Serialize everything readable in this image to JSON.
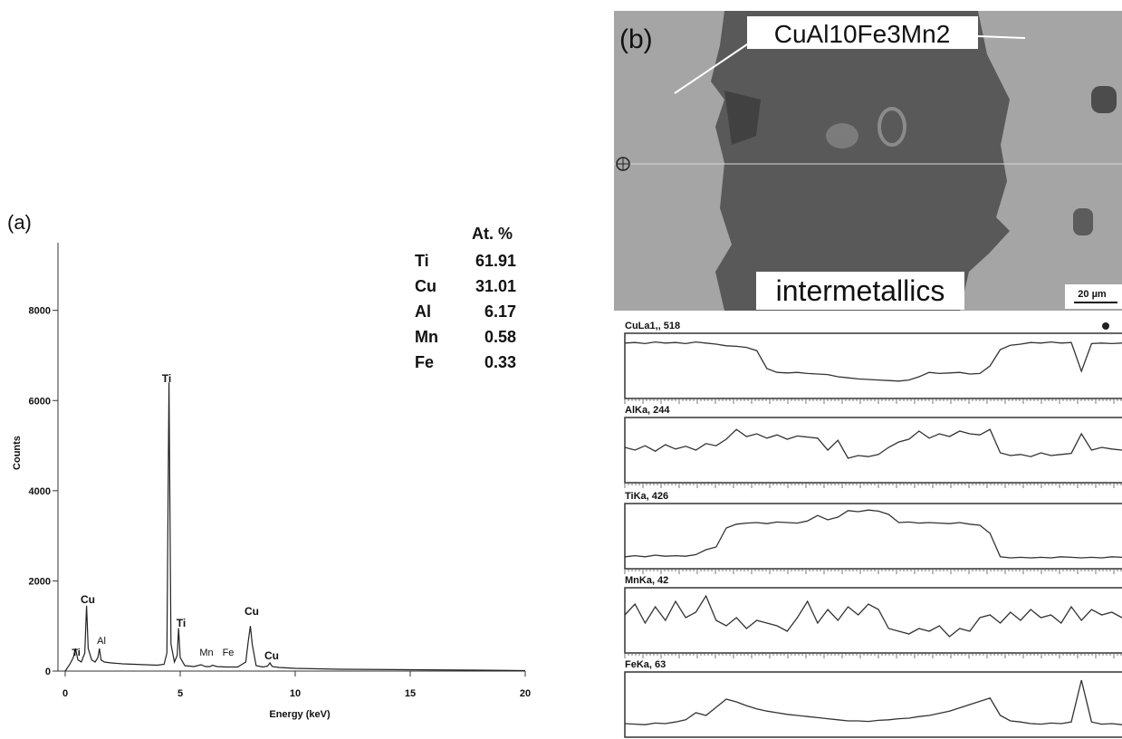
{
  "chart_data": [
    {
      "type": "line",
      "panel_label": "(a)",
      "xlabel": "Energy (keV)",
      "ylabel": "Counts",
      "x": [
        0,
        0.2,
        0.35,
        0.45,
        0.55,
        0.7,
        0.85,
        0.93,
        1.0,
        1.15,
        1.3,
        1.42,
        1.49,
        1.56,
        1.7,
        2,
        2.5,
        3,
        3.5,
        4,
        4.3,
        4.42,
        4.51,
        4.6,
        4.75,
        4.87,
        4.93,
        5.0,
        5.2,
        5.6,
        5.9,
        6.1,
        6.3,
        6.4,
        6.6,
        7,
        7.5,
        7.85,
        7.97,
        8.05,
        8.13,
        8.3,
        8.6,
        8.8,
        8.9,
        9.0,
        9.3,
        10,
        12,
        15,
        18,
        20
      ],
      "values": [
        0,
        150,
        300,
        500,
        250,
        200,
        400,
        1450,
        500,
        250,
        200,
        300,
        500,
        250,
        200,
        180,
        160,
        150,
        140,
        130,
        150,
        400,
        6400,
        600,
        200,
        350,
        950,
        300,
        120,
        100,
        140,
        100,
        100,
        130,
        100,
        90,
        90,
        200,
        700,
        1000,
        600,
        120,
        90,
        110,
        180,
        100,
        80,
        60,
        40,
        30,
        20,
        10
      ],
      "color": "#222222",
      "xlim": [
        0,
        20
      ],
      "xticks": [
        0,
        5,
        10,
        15,
        20
      ],
      "ylim": [
        0,
        9500
      ],
      "yticks": [
        0,
        2000,
        4000,
        6000,
        8000
      ],
      "annotations": [
        "Ti",
        "Cu",
        "Al",
        "Ti",
        "Ti",
        "Mn",
        "Fe",
        "Cu",
        "Cu"
      ],
      "table": {
        "header": "At. %",
        "rows": [
          [
            "Ti",
            61.91
          ],
          [
            "Cu",
            31.01
          ],
          [
            "Al",
            6.17
          ],
          [
            "Mn",
            0.58
          ],
          [
            "Fe",
            0.33
          ]
        ]
      }
    },
    {
      "type": "line",
      "title": "CuLa1,, 518",
      "color": "#333333",
      "ylim": [
        0,
        100
      ],
      "values": [
        92,
        93,
        91,
        94,
        92,
        93,
        91,
        94,
        92,
        90,
        87,
        86,
        84,
        78,
        45,
        38,
        37,
        38,
        36,
        35,
        34,
        30,
        28,
        26,
        25,
        24,
        23,
        22,
        24,
        30,
        38,
        36,
        37,
        38,
        35,
        36,
        50,
        80,
        88,
        90,
        93,
        92,
        94,
        92,
        93,
        40,
        91,
        92,
        91,
        92
      ]
    },
    {
      "type": "line",
      "title": "AlKa, 244",
      "color": "#333333",
      "ylim": [
        0,
        100
      ],
      "values": [
        55,
        50,
        58,
        48,
        60,
        52,
        57,
        50,
        62,
        58,
        70,
        88,
        75,
        80,
        72,
        78,
        70,
        76,
        74,
        72,
        50,
        68,
        35,
        40,
        38,
        42,
        55,
        65,
        70,
        85,
        72,
        80,
        75,
        85,
        80,
        78,
        88,
        45,
        40,
        42,
        38,
        45,
        40,
        42,
        44,
        80,
        50,
        55,
        52,
        50
      ]
    },
    {
      "type": "line",
      "title": "TiKa, 426",
      "color": "#333333",
      "ylim": [
        0,
        100
      ],
      "values": [
        12,
        14,
        12,
        15,
        13,
        14,
        13,
        16,
        25,
        30,
        65,
        72,
        74,
        75,
        73,
        76,
        75,
        74,
        78,
        88,
        80,
        85,
        97,
        95,
        98,
        96,
        90,
        75,
        76,
        74,
        75,
        74,
        73,
        75,
        72,
        70,
        55,
        12,
        10,
        11,
        10,
        11,
        10,
        12,
        11,
        10,
        11,
        10,
        12,
        11
      ]
    },
    {
      "type": "line",
      "title": "MnKa, 42",
      "color": "#333333",
      "ylim": [
        0,
        100
      ],
      "values": [
        60,
        80,
        45,
        75,
        50,
        85,
        55,
        65,
        95,
        50,
        40,
        55,
        35,
        50,
        45,
        40,
        30,
        55,
        85,
        45,
        70,
        50,
        75,
        60,
        80,
        70,
        35,
        30,
        25,
        35,
        30,
        40,
        20,
        35,
        30,
        55,
        60,
        45,
        65,
        50,
        70,
        55,
        60,
        45,
        75,
        50,
        70,
        60,
        65,
        55
      ]
    },
    {
      "type": "line",
      "title": "FeKa, 63",
      "color": "#333333",
      "ylim": [
        0,
        100
      ],
      "values": [
        15,
        14,
        13,
        16,
        15,
        18,
        22,
        35,
        30,
        45,
        60,
        55,
        48,
        42,
        38,
        35,
        32,
        30,
        28,
        26,
        24,
        22,
        20,
        20,
        19,
        21,
        22,
        24,
        25,
        28,
        30,
        34,
        38,
        44,
        50,
        56,
        62,
        30,
        20,
        18,
        15,
        14,
        16,
        15,
        18,
        95,
        18,
        14,
        15,
        13
      ]
    }
  ],
  "image": {
    "panel_label": "(b)",
    "alloy_label": "CuAl10Fe3Mn2",
    "phase_label": "intermetallics",
    "scale_bar": "20 µm"
  }
}
